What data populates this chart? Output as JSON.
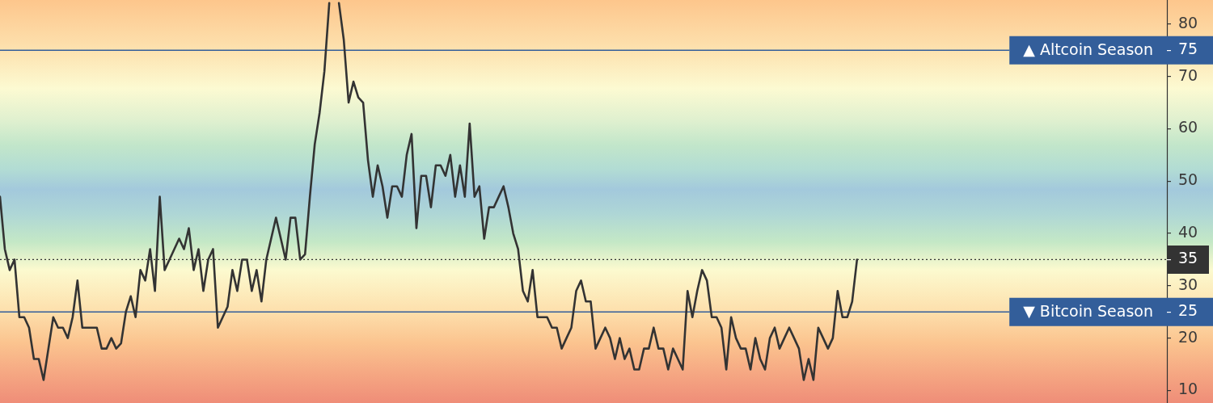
{
  "chart_data": {
    "type": "line",
    "categories": [
      null,
      null,
      null,
      null,
      null,
      null,
      null,
      null,
      null,
      null,
      null,
      null,
      null,
      null,
      null,
      null,
      null,
      null,
      null,
      null,
      null,
      null,
      null,
      null,
      null,
      null,
      null,
      null,
      null,
      null,
      null,
      null,
      null,
      null,
      null,
      null,
      null,
      null,
      null,
      null,
      null,
      null,
      null,
      null,
      null,
      null,
      null,
      null,
      null,
      null,
      null,
      null,
      null,
      null,
      null,
      null,
      null,
      null,
      null,
      null,
      null,
      null,
      null,
      null,
      null,
      null,
      null,
      null,
      null,
      null,
      null,
      null,
      null,
      null,
      null,
      null,
      null,
      null,
      null,
      null,
      null,
      null,
      null,
      null,
      null,
      null,
      null,
      null,
      null,
      null,
      null,
      null,
      null,
      null,
      null,
      null,
      null,
      null,
      null,
      null,
      null,
      null,
      null,
      null,
      null,
      null,
      null,
      null,
      null,
      null,
      null,
      null,
      null,
      null,
      null,
      null,
      null,
      null,
      null,
      null,
      null,
      null,
      null,
      null,
      null,
      null,
      null,
      null,
      null,
      null,
      null,
      null,
      null,
      null,
      null,
      null,
      null,
      null,
      null,
      null,
      null,
      null,
      null,
      null,
      null,
      null,
      null,
      null,
      null,
      null,
      null,
      null,
      null,
      null,
      null,
      null,
      null,
      null,
      null,
      null,
      null,
      null,
      null,
      null,
      null,
      null,
      null,
      null,
      null,
      null,
      null,
      null,
      null,
      null,
      null,
      null,
      null,
      null,
      null,
      null,
      null,
      null,
      null,
      null,
      null,
      null,
      null,
      null,
      null,
      null,
      null,
      null,
      null,
      null,
      null,
      null,
      null,
      null,
      null,
      null,
      null,
      null,
      null,
      null,
      null,
      null,
      null,
      null,
      null,
      null,
      null,
      null,
      null,
      null,
      null,
      null,
      null,
      null,
      null,
      null,
      null,
      null,
      null,
      null,
      null,
      null,
      null,
      null,
      null,
      null,
      null,
      null,
      null,
      null,
      null,
      null,
      null,
      null,
      null,
      null,
      null,
      null
    ],
    "values": [
      47,
      37,
      33,
      35,
      24,
      24,
      22,
      16,
      16,
      12,
      18,
      24,
      22,
      22,
      20,
      24,
      31,
      22,
      22,
      22,
      22,
      18,
      18,
      20,
      18,
      19,
      25,
      28,
      24,
      33,
      31,
      37,
      29,
      47,
      33,
      35,
      37,
      39,
      37,
      41,
      33,
      37,
      29,
      35,
      37,
      22,
      24,
      26,
      33,
      29,
      35,
      35,
      29,
      33,
      27,
      35,
      39,
      43,
      39,
      35,
      43,
      43,
      35,
      36,
      47,
      57,
      63,
      71,
      84,
      null,
      84,
      77,
      65,
      69,
      66,
      65,
      54,
      47,
      53,
      49,
      43,
      49,
      49,
      47,
      55,
      59,
      41,
      51,
      51,
      45,
      53,
      53,
      51,
      55,
      47,
      53,
      47,
      61,
      47,
      49,
      39,
      45,
      45,
      47,
      49,
      45,
      40,
      37,
      29,
      27,
      33,
      24,
      24,
      24,
      22,
      22,
      18,
      20,
      22,
      29,
      31,
      27,
      27,
      18,
      20,
      22,
      20,
      16,
      20,
      16,
      18,
      14,
      14,
      18,
      18,
      22,
      18,
      18,
      14,
      18,
      16,
      14,
      29,
      24,
      29,
      33,
      31,
      24,
      24,
      22,
      14,
      24,
      20,
      18,
      18,
      14,
      20,
      16,
      14,
      20,
      22,
      18,
      20,
      22,
      20,
      18,
      12,
      16,
      12,
      22,
      20,
      18,
      20,
      29,
      24,
      24,
      27,
      35,
      null,
      null,
      null,
      null,
      null,
      null,
      null,
      null,
      null,
      null,
      null,
      null,
      null,
      null,
      null,
      null,
      null,
      null,
      null,
      null,
      null,
      null,
      null,
      null,
      null,
      null,
      null,
      null,
      null,
      null,
      null,
      null,
      null,
      null,
      null,
      null,
      null,
      null,
      null,
      null,
      null,
      null,
      null,
      null,
      null,
      null,
      null,
      null,
      null,
      null,
      null,
      null,
      null,
      null,
      null,
      null,
      null,
      null,
      null,
      null,
      null,
      null,
      null,
      null
    ],
    "color": "#333333",
    "ylim": [
      7.6,
      84.6
    ],
    "yticks": [
      10,
      20,
      25,
      30,
      35,
      40,
      50,
      60,
      70,
      75,
      80
    ],
    "tick_labels": "y",
    "marker": "none",
    "line_style": "solid",
    "ref_lines": [
      {
        "axis": "y",
        "value": 75,
        "label": "▲ Altcoin Season",
        "color": "#335e9a"
      },
      {
        "axis": "y",
        "value": 25,
        "label": "▼ Bitcoin Season",
        "color": "#335e9a"
      },
      {
        "axis": "y",
        "value": 35,
        "color": "#333333",
        "line_style": "dotted"
      }
    ]
  }
}
